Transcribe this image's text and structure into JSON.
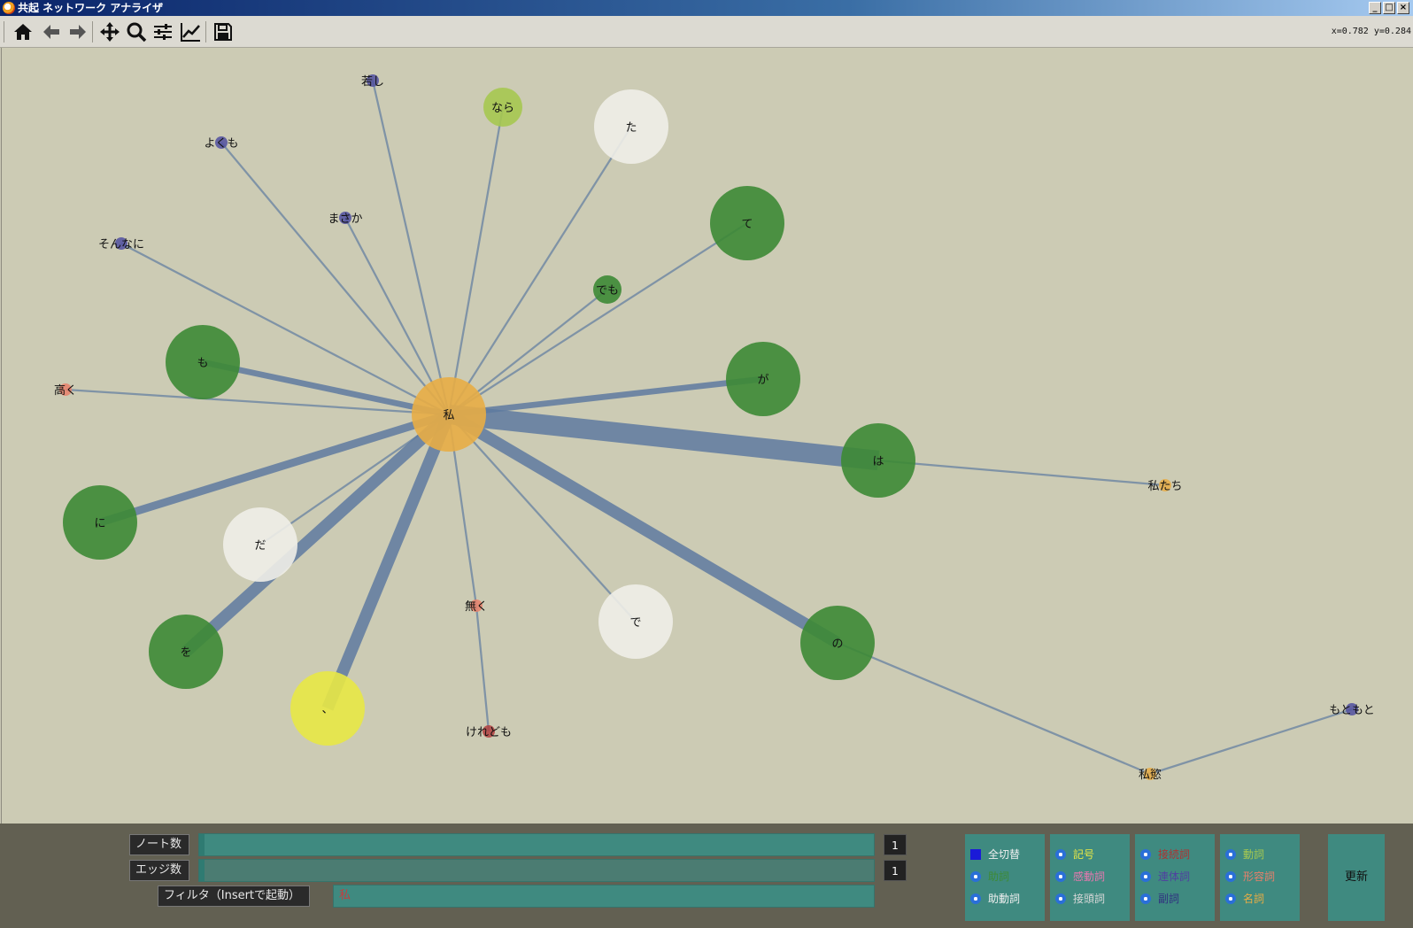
{
  "window": {
    "title": "共起 ネットワーク アナライザ"
  },
  "toolbar": {
    "icons": [
      "home-icon",
      "back-arrow-icon",
      "forward-arrow-icon",
      "pan-move-icon",
      "zoom-icon",
      "configure-sliders-icon",
      "edit-chart-icon",
      "save-disk-icon"
    ],
    "coords": "x=0.782 y=0.284"
  },
  "graph": {
    "center": "私",
    "nodes": [
      {
        "id": "私",
        "color": "#e8ad45",
        "size": "large"
      },
      {
        "id": "は",
        "color": "#3d8a35",
        "size": "large"
      },
      {
        "id": "が",
        "color": "#3d8a35",
        "size": "large"
      },
      {
        "id": "て",
        "color": "#3d8a35",
        "size": "large"
      },
      {
        "id": "も",
        "color": "#3d8a35",
        "size": "large"
      },
      {
        "id": "に",
        "color": "#3d8a35",
        "size": "large"
      },
      {
        "id": "を",
        "color": "#3d8a35",
        "size": "large"
      },
      {
        "id": "の",
        "color": "#3d8a35",
        "size": "large"
      },
      {
        "id": "でも",
        "color": "#3d8a35",
        "size": "small"
      },
      {
        "id": "なら",
        "color": "#a6c850",
        "size": "medium"
      },
      {
        "id": "た",
        "color": "#efeee8",
        "size": "large"
      },
      {
        "id": "だ",
        "color": "#efeee8",
        "size": "large"
      },
      {
        "id": "で",
        "color": "#efeee8",
        "size": "large"
      },
      {
        "id": "、",
        "color": "#e8e845",
        "size": "large"
      },
      {
        "id": "無く",
        "color": "#e8806a",
        "size": "tiny"
      },
      {
        "id": "高く",
        "color": "#e8806a",
        "size": "tiny"
      },
      {
        "id": "けれども",
        "color": "#b04040",
        "size": "tiny"
      },
      {
        "id": "若し",
        "color": "#5050a0",
        "size": "tiny"
      },
      {
        "id": "よくも",
        "color": "#5050a0",
        "size": "tiny"
      },
      {
        "id": "まさか",
        "color": "#5050a0",
        "size": "tiny"
      },
      {
        "id": "そんなに",
        "color": "#5050a0",
        "size": "tiny"
      },
      {
        "id": "もともと",
        "color": "#5050a0",
        "size": "tiny"
      },
      {
        "id": "私たち",
        "color": "#e8ad45",
        "size": "tiny"
      },
      {
        "id": "私慾",
        "color": "#e8ad45",
        "size": "tiny"
      }
    ],
    "edges": [
      {
        "from": "私",
        "to": "は",
        "weight": 5
      },
      {
        "from": "私",
        "to": "の",
        "weight": 3
      },
      {
        "from": "私",
        "to": "を",
        "weight": 3
      },
      {
        "from": "私",
        "to": "、",
        "weight": 3
      },
      {
        "from": "私",
        "to": "に",
        "weight": 2
      },
      {
        "from": "私",
        "to": "が",
        "weight": 1.5
      },
      {
        "from": "私",
        "to": "も",
        "weight": 1.5
      },
      {
        "from": "私",
        "to": "て",
        "weight": 0.5
      },
      {
        "from": "私",
        "to": "でも",
        "weight": 0.5
      },
      {
        "from": "私",
        "to": "た",
        "weight": 0.5
      },
      {
        "from": "私",
        "to": "なら",
        "weight": 0.5
      },
      {
        "from": "私",
        "to": "若し",
        "weight": 0.5
      },
      {
        "from": "私",
        "to": "よくも",
        "weight": 0.5
      },
      {
        "from": "私",
        "to": "まさか",
        "weight": 0.5
      },
      {
        "from": "私",
        "to": "そんなに",
        "weight": 0.5
      },
      {
        "from": "私",
        "to": "高く",
        "weight": 0.5
      },
      {
        "from": "私",
        "to": "だ",
        "weight": 0.5
      },
      {
        "from": "私",
        "to": "無く",
        "weight": 0.5
      },
      {
        "from": "私",
        "to": "で",
        "weight": 0.5
      },
      {
        "from": "無く",
        "to": "けれども",
        "weight": 0.5
      },
      {
        "from": "は",
        "to": "私たち",
        "weight": 0.5
      },
      {
        "from": "の",
        "to": "私慾",
        "weight": 0.5
      },
      {
        "from": "私慾",
        "to": "もともと",
        "weight": 0.5
      }
    ]
  },
  "controls": {
    "node_count_label": "ノート数",
    "edge_count_label": "エッジ数",
    "filter_label": "フィルタ（Insertで起動）",
    "filter_value": "私",
    "node_count": "1",
    "edge_count": "1",
    "update_label": "更新"
  },
  "legend": [
    [
      {
        "label": "全切替",
        "color": "#f0f0f0",
        "square": true
      },
      {
        "label": "助詞",
        "color": "#3d8a35"
      },
      {
        "label": "助動詞",
        "color": "#f0f0f0"
      }
    ],
    [
      {
        "label": "記号",
        "color": "#e8e845"
      },
      {
        "label": "感動詞",
        "color": "#e878b0"
      },
      {
        "label": "接頭詞",
        "color": "#d8d8d8"
      }
    ],
    [
      {
        "label": "接続詞",
        "color": "#b03030"
      },
      {
        "label": "連体詞",
        "color": "#5040a0"
      },
      {
        "label": "副詞",
        "color": "#303080"
      }
    ],
    [
      {
        "label": "動詞",
        "color": "#a6c850"
      },
      {
        "label": "形容詞",
        "color": "#e8806a"
      },
      {
        "label": "名詞",
        "color": "#e8ad45"
      }
    ]
  ]
}
